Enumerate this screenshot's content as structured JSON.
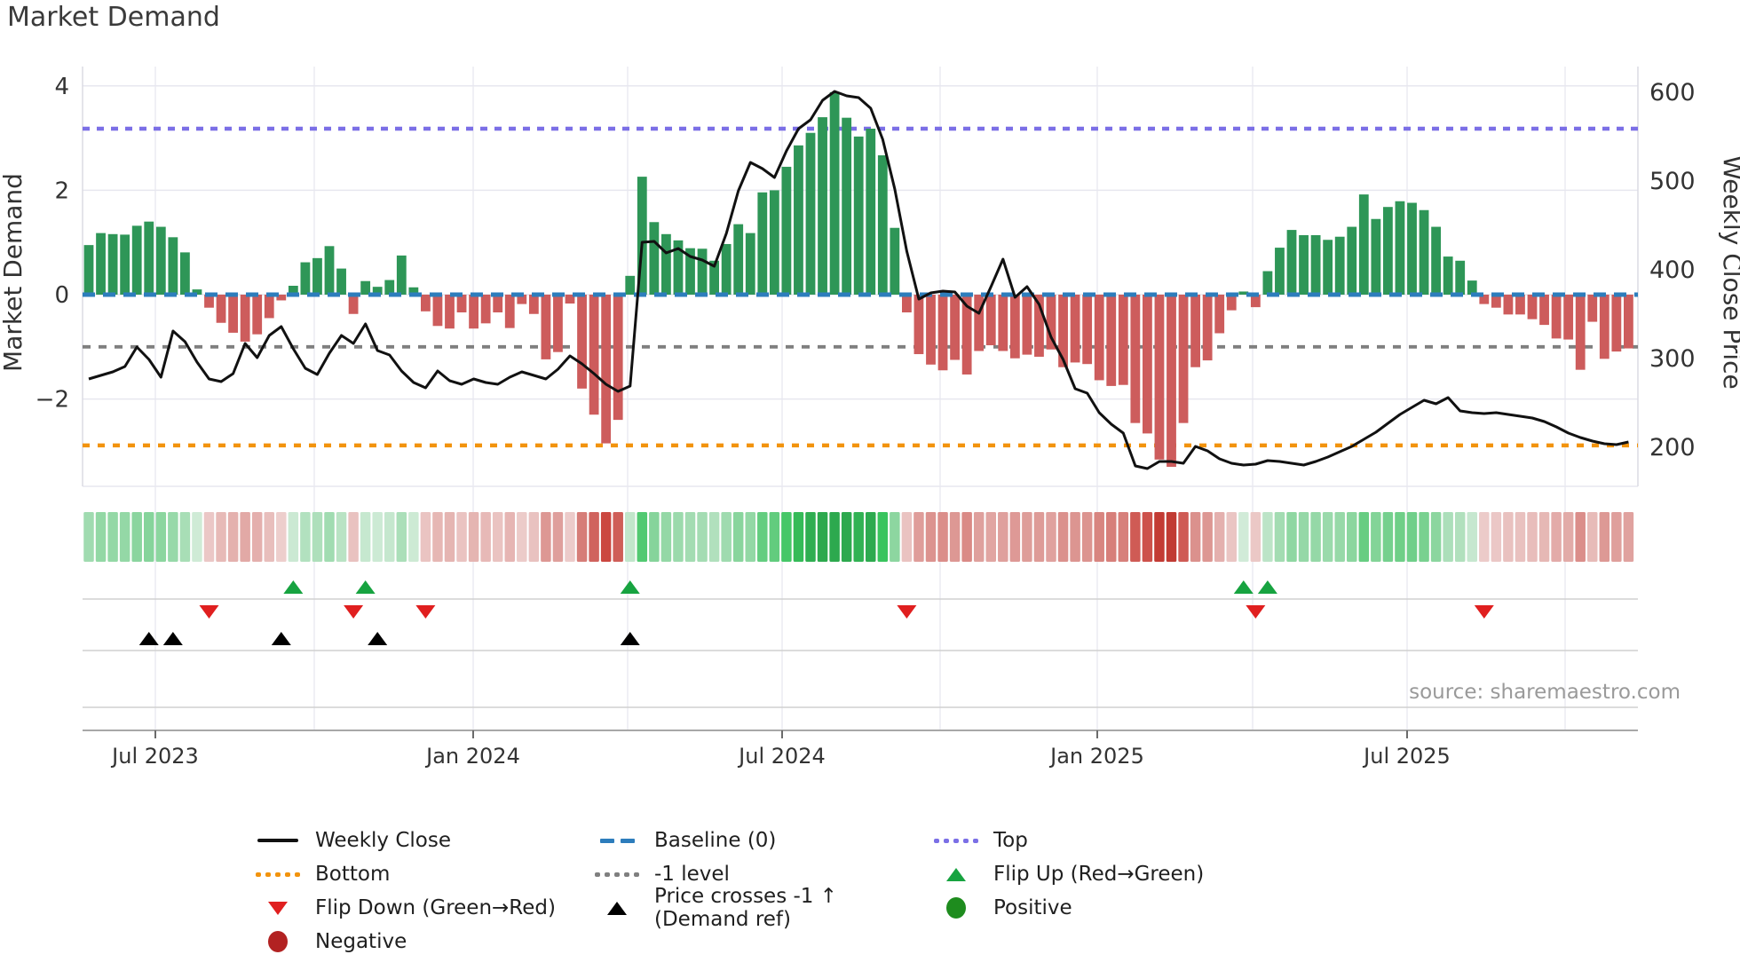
{
  "title": "Market Demand",
  "source": "source: sharemaestro.com",
  "legend": {
    "items": [
      {
        "label": "Weekly Close",
        "swatch": "black-line"
      },
      {
        "label": "Bottom",
        "swatch": "orange-dotted"
      },
      {
        "label": "Flip Down (Green→Red)",
        "swatch": "red-triangle-down"
      },
      {
        "label": "Negative",
        "swatch": "darkred-circle"
      },
      {
        "label": "Baseline (0)",
        "swatch": "blue-dashed"
      },
      {
        "label": "-1 level",
        "swatch": "gray-dotted"
      },
      {
        "label": "Price crosses -1 ↑ (Demand ref)",
        "swatch": "black-triangle-up"
      },
      {
        "label": "Top",
        "swatch": "purple-dotted"
      },
      {
        "label": "Flip Up (Red→Green)",
        "swatch": "green-triangle-up"
      },
      {
        "label": "Positive",
        "swatch": "green-circle"
      }
    ]
  },
  "chart_data": {
    "type": "bar+line",
    "title": "Market Demand",
    "left_axis": {
      "label": "Market Demand",
      "ticks": [
        4,
        2,
        0,
        -2
      ]
    },
    "right_axis": {
      "label": "Weekly Close Price",
      "ticks": [
        600,
        500,
        400,
        300,
        200
      ]
    },
    "x_ticks": [
      "Jul 2023",
      "Jan 2024",
      "Jul 2024",
      "Jan 2025",
      "Jul 2025"
    ],
    "reference_lines": {
      "top": 3.18,
      "baseline": 0,
      "minus1": -1,
      "bottom": -2.89
    },
    "series": [
      {
        "name": "Market Demand",
        "type": "bar",
        "axis": "left",
        "values": [
          0.95,
          1.18,
          1.16,
          1.15,
          1.32,
          1.4,
          1.3,
          1.1,
          0.81,
          0.1,
          -0.25,
          -0.54,
          -0.73,
          -0.9,
          -0.76,
          -0.45,
          -0.11,
          0.17,
          0.62,
          0.7,
          0.93,
          0.5,
          -0.37,
          0.26,
          0.15,
          0.28,
          0.75,
          0.14,
          -0.32,
          -0.6,
          -0.65,
          -0.34,
          -0.65,
          -0.55,
          -0.34,
          -0.64,
          -0.18,
          -0.37,
          -1.24,
          -1.1,
          -0.17,
          -1.8,
          -2.3,
          -2.85,
          -2.4,
          0.36,
          2.26,
          1.39,
          1.16,
          1.04,
          0.89,
          0.88,
          0.65,
          0.97,
          1.35,
          1.18,
          1.96,
          2.0,
          2.45,
          2.86,
          3.1,
          3.4,
          3.88,
          3.39,
          3.03,
          3.18,
          2.67,
          1.28,
          -0.34,
          -1.14,
          -1.34,
          -1.45,
          -1.25,
          -1.53,
          -1.08,
          -0.97,
          -1.08,
          -1.22,
          -1.15,
          -1.19,
          -1.05,
          -1.39,
          -1.3,
          -1.33,
          -1.64,
          -1.75,
          -1.73,
          -2.46,
          -2.66,
          -3.16,
          -3.3,
          -2.46,
          -1.39,
          -1.26,
          -0.74,
          -0.3,
          0.06,
          -0.24,
          0.45,
          0.9,
          1.24,
          1.14,
          1.14,
          1.05,
          1.11,
          1.3,
          1.92,
          1.45,
          1.68,
          1.79,
          1.76,
          1.62,
          1.3,
          0.73,
          0.65,
          0.27,
          -0.18,
          -0.25,
          -0.38,
          -0.38,
          -0.47,
          -0.58,
          -0.84,
          -0.86,
          -1.44,
          -0.52,
          -1.23,
          -1.09,
          -1.03
        ]
      },
      {
        "name": "Weekly Close",
        "type": "line",
        "axis": "right",
        "values": [
          276,
          280,
          284,
          290,
          312,
          298,
          278,
          330,
          318,
          295,
          276,
          273,
          282,
          316,
          300,
          325,
          335,
          310,
          288,
          281,
          305,
          325,
          316,
          338,
          308,
          303,
          285,
          272,
          266,
          285,
          274,
          270,
          276,
          272,
          270,
          278,
          284,
          280,
          276,
          287,
          302,
          293,
          282,
          270,
          262,
          268,
          430,
          431,
          418,
          423,
          414,
          410,
          403,
          440,
          488,
          520,
          513,
          503,
          533,
          558,
          568,
          590,
          600,
          595,
          593,
          581,
          546,
          490,
          420,
          366,
          373,
          375,
          374,
          358,
          350,
          380,
          411,
          368,
          380,
          360,
          323,
          298,
          265,
          260,
          238,
          225,
          215,
          178,
          175,
          183,
          183,
          181,
          200,
          195,
          186,
          181,
          179,
          180,
          184,
          183,
          181,
          179,
          183,
          188,
          194,
          200,
          208,
          216,
          226,
          236,
          244,
          252,
          248,
          255,
          240,
          238,
          237,
          238,
          236,
          234,
          232,
          228,
          222,
          215,
          210,
          206,
          203,
          202,
          205
        ]
      }
    ],
    "markers": {
      "flip_up_weeks": [
        17,
        23,
        45,
        96,
        98
      ],
      "flip_down_weeks": [
        10,
        22,
        28,
        68,
        97,
        116
      ],
      "price_cross_weeks": [
        5,
        7,
        16,
        24,
        45
      ]
    },
    "layout_hints": {
      "grid": "on",
      "legend_position": "bottom",
      "heatmap_strip": "demand sign/intensity per week"
    },
    "colors": {
      "bar_positive": "#2e9657",
      "bar_negative": "#cd5c5c",
      "price_line": "#111111",
      "baseline": "#2d7dbc",
      "top": "#7b6fe6",
      "minus1": "#7f7f7f",
      "bottom": "#f2930d",
      "flip_up": "#17a340",
      "flip_down": "#e01f1f",
      "price_cross": "#000000",
      "positive_dot": "#1e8c1e",
      "negative_dot": "#b22222"
    }
  }
}
